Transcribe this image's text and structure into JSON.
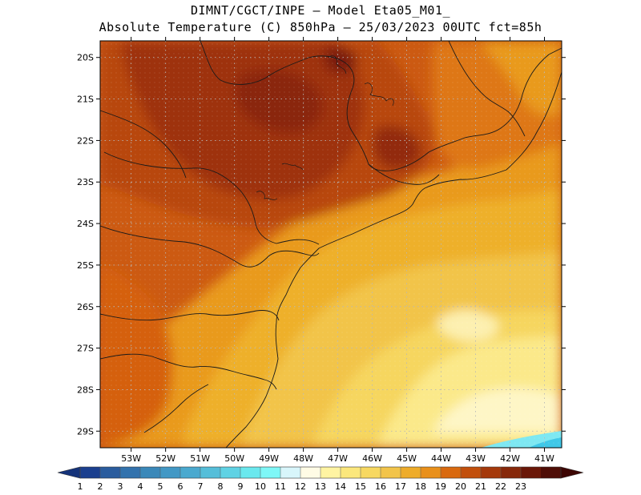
{
  "header": {
    "line1": "DIMNT/CGCT/INPE —  Model Eta05_M01_",
    "line2": "Absolute Temperature (C) 850hPa —  25/03/2023 00UTC fct=85h"
  },
  "map": {
    "lat_labels": [
      "20S",
      "21S",
      "22S",
      "23S",
      "24S",
      "25S",
      "26S",
      "27S",
      "28S",
      "29S"
    ],
    "lon_labels": [
      "53W",
      "52W",
      "51W",
      "50W",
      "49W",
      "48W",
      "47W",
      "46W",
      "45W",
      "44W",
      "43W",
      "42W",
      "41W"
    ],
    "lon_range": [
      -53.9,
      -40.5
    ],
    "lat_range": [
      -29.4,
      -19.6
    ]
  },
  "colorbar": {
    "labels": [
      "1",
      "2",
      "3",
      "4",
      "5",
      "6",
      "7",
      "8",
      "9",
      "10",
      "11",
      "12",
      "13",
      "14",
      "15",
      "16",
      "17",
      "18",
      "19",
      "20",
      "21",
      "22",
      "23"
    ],
    "colors": [
      "#1b3f8f",
      "#2a5c9e",
      "#3272ad",
      "#3a88b9",
      "#4298c5",
      "#4aa9cf",
      "#55bed9",
      "#5fd2e4",
      "#6ae8ee",
      "#7ef7f7",
      "#d8f6fb",
      "#fffbe5",
      "#fff4a2",
      "#fbe77c",
      "#f7d861",
      "#f2c44a",
      "#eeac2a",
      "#e9901a",
      "#d9690f",
      "#c24f0c",
      "#a5390b",
      "#87280a",
      "#6a1708",
      "#4f0d06"
    ],
    "under_color": "#15337a",
    "over_color": "#3d0603"
  },
  "colors": {
    "hot": "#a33a0c",
    "warm": "#cc5a12",
    "mid": "#e8a21d",
    "cool": "#f4d35a",
    "pale": "#fdf2b0",
    "cyan": "#7ee8f2"
  }
}
